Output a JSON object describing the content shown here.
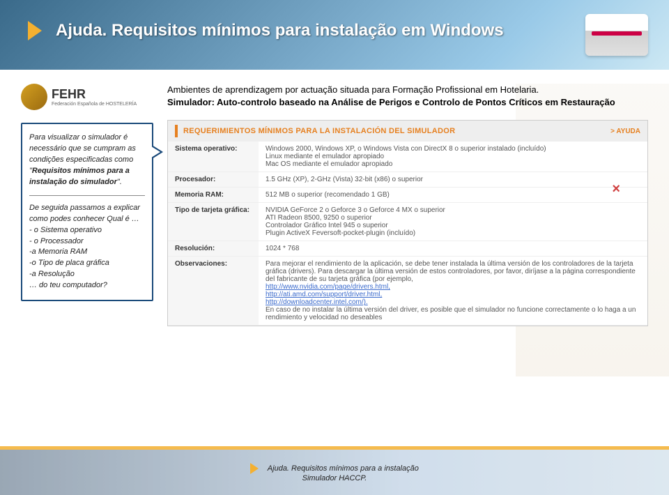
{
  "banner": {
    "title": "Ajuda. Requisitos mínimos para instalação em Windows"
  },
  "logo": {
    "name": "FEHR",
    "sub": "Federación Española de HOSTELERÍA"
  },
  "intro": {
    "line1": "Ambientes de aprendizagem por actuação situada para Formação Profissional em Hotelaria.",
    "line2": "Simulador: Auto-controlo baseado na Análise de Perigos e Controlo de Pontos Críticos em Restauração"
  },
  "callout": {
    "p1a": "Para visualizar o simulador é necessário que se cumpram as condições especificadas como \"",
    "p1b": "Requisitos mínimos para a instalação do simulador",
    "p1c": "\".",
    "p2": "De seguida passamos a explicar como podes conhecer Qual é …",
    "items": [
      "- o Sistema operativo",
      "- o Processador",
      "-a Memoria RAM",
      "-o Tipo de placa gráfica",
      "-a Resolução"
    ],
    "p3": "… do teu computador?"
  },
  "req": {
    "title": "REQUERIMIENTOS MÍNIMOS PARA LA INSTALACIÓN DEL SIMULADOR",
    "ayuda": "> AYUDA",
    "rows": [
      {
        "k": "Sistema operativo:",
        "v": "Windows 2000, Windows XP, o Windows Vista con DirectX 8 o superior instalado (incluído)\nLinux mediante el emulador apropiado\nMac OS mediante el emulador apropiado"
      },
      {
        "k": "Procesador:",
        "v": "1.5 GHz (XP), 2-GHz (Vista) 32-bit (x86) o superior"
      },
      {
        "k": "Memoria RAM:",
        "v": "512 MB o superior (recomendado 1 GB)"
      },
      {
        "k": "Tipo de tarjeta gráfica:",
        "v": "NVIDIA GeForce 2 o Geforce 3 o Geforce 4 MX o superior\nATI Radeon 8500, 9250 o superior\nControlador Gráfico Intel 945 o superior\nPlugin ActiveX Feversoft-pocket-plugin (incluído)"
      },
      {
        "k": "Resolución:",
        "v": "1024 * 768"
      },
      {
        "k": "Observaciones:",
        "v": "Para mejorar el rendimiento de la aplicación, se debe tener instalada la última versión de los controladores de la tarjeta gráfica (drivers). Para descargar la última versión de estos controladores, por favor, diríjase a la página correspondiente del fabricante de su tarjeta gráfica (por ejemplo,",
        "links": [
          "http://www.nvidia.com/page/drivers.html,",
          "http://ati.amd.com/support/driver.html,",
          "http://downloadcenter.intel.com/)."
        ],
        "v2": "En caso de no instalar la última versión del driver, es posible que el simulador no funcione correctamente o lo haga a un rendimiento y velocidad no deseables"
      }
    ]
  },
  "footer": {
    "line1": "Ajuda. Requisitos mínimos para a instalação",
    "line2": "Simulador HACCP."
  },
  "colors": {
    "orange": "#f4b030",
    "blue": "#1a4a7a",
    "headorange": "#e68020"
  }
}
